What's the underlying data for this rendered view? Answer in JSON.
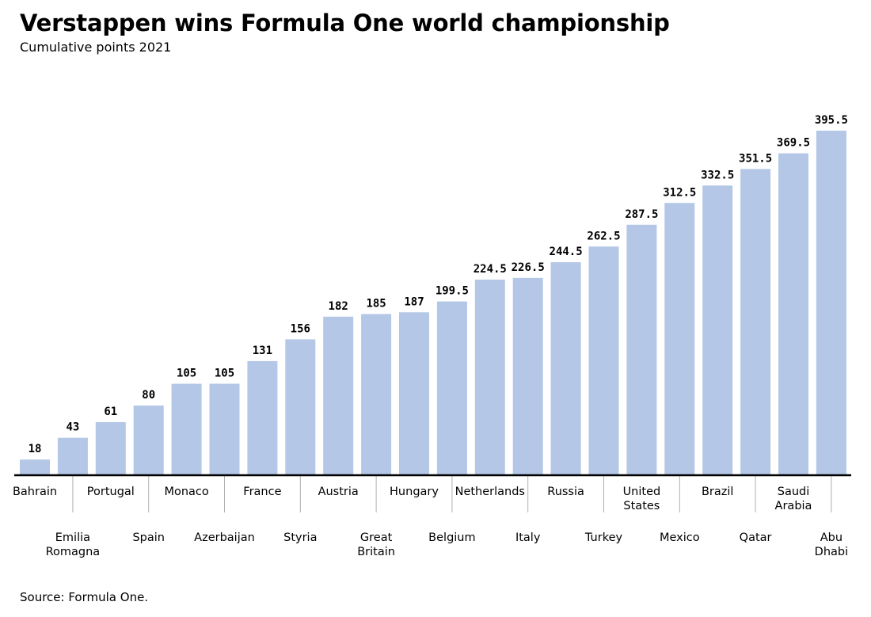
{
  "title": "Verstappen wins Formula One world championship",
  "subtitle": "Cumulative points 2021",
  "source": "Source: Formula One.",
  "colors": {
    "bar": "#b4c7e7",
    "axis": "#000000",
    "tick": "#b0b0b0"
  },
  "chart_data": {
    "type": "bar",
    "title": "Verstappen wins Formula One world championship",
    "subtitle": "Cumulative points 2021",
    "xlabel": "",
    "ylabel": "",
    "ylim": [
      0,
      400
    ],
    "grid": false,
    "categories": [
      "Bahrain",
      "Emilia Romagna",
      "Portugal",
      "Spain",
      "Monaco",
      "Azerbaijan",
      "France",
      "Styria",
      "Austria",
      "Great Britain",
      "Hungary",
      "Belgium",
      "Netherlands",
      "Italy",
      "Russia",
      "Turkey",
      "United States",
      "Mexico",
      "Brazil",
      "Qatar",
      "Saudi Arabia",
      "Abu Dhabi"
    ],
    "category_lines": [
      [
        "Bahrain"
      ],
      [
        "Emilia",
        "Romagna"
      ],
      [
        "Portugal"
      ],
      [
        "Spain"
      ],
      [
        "Monaco"
      ],
      [
        "Azerbaijan"
      ],
      [
        "France"
      ],
      [
        "Styria"
      ],
      [
        "Austria"
      ],
      [
        "Great",
        "Britain"
      ],
      [
        "Hungary"
      ],
      [
        "Belgium"
      ],
      [
        "Netherlands"
      ],
      [
        "Italy"
      ],
      [
        "Russia"
      ],
      [
        "Turkey"
      ],
      [
        "United",
        "States"
      ],
      [
        "Mexico"
      ],
      [
        "Brazil"
      ],
      [
        "Qatar"
      ],
      [
        "Saudi",
        "Arabia"
      ],
      [
        "Abu",
        "Dhabi"
      ]
    ],
    "values": [
      18,
      43,
      61,
      80,
      105,
      105,
      131,
      156,
      182,
      185,
      187,
      199.5,
      224.5,
      226.5,
      244.5,
      262.5,
      287.5,
      312.5,
      332.5,
      351.5,
      369.5,
      395.5
    ],
    "value_labels": [
      "18",
      "43",
      "61",
      "80",
      "105",
      "105",
      "131",
      "156",
      "182",
      "185",
      "187",
      "199.5",
      "224.5",
      "226.5",
      "244.5",
      "262.5",
      "287.5",
      "312.5",
      "332.5",
      "351.5",
      "369.5",
      "395.5"
    ]
  }
}
